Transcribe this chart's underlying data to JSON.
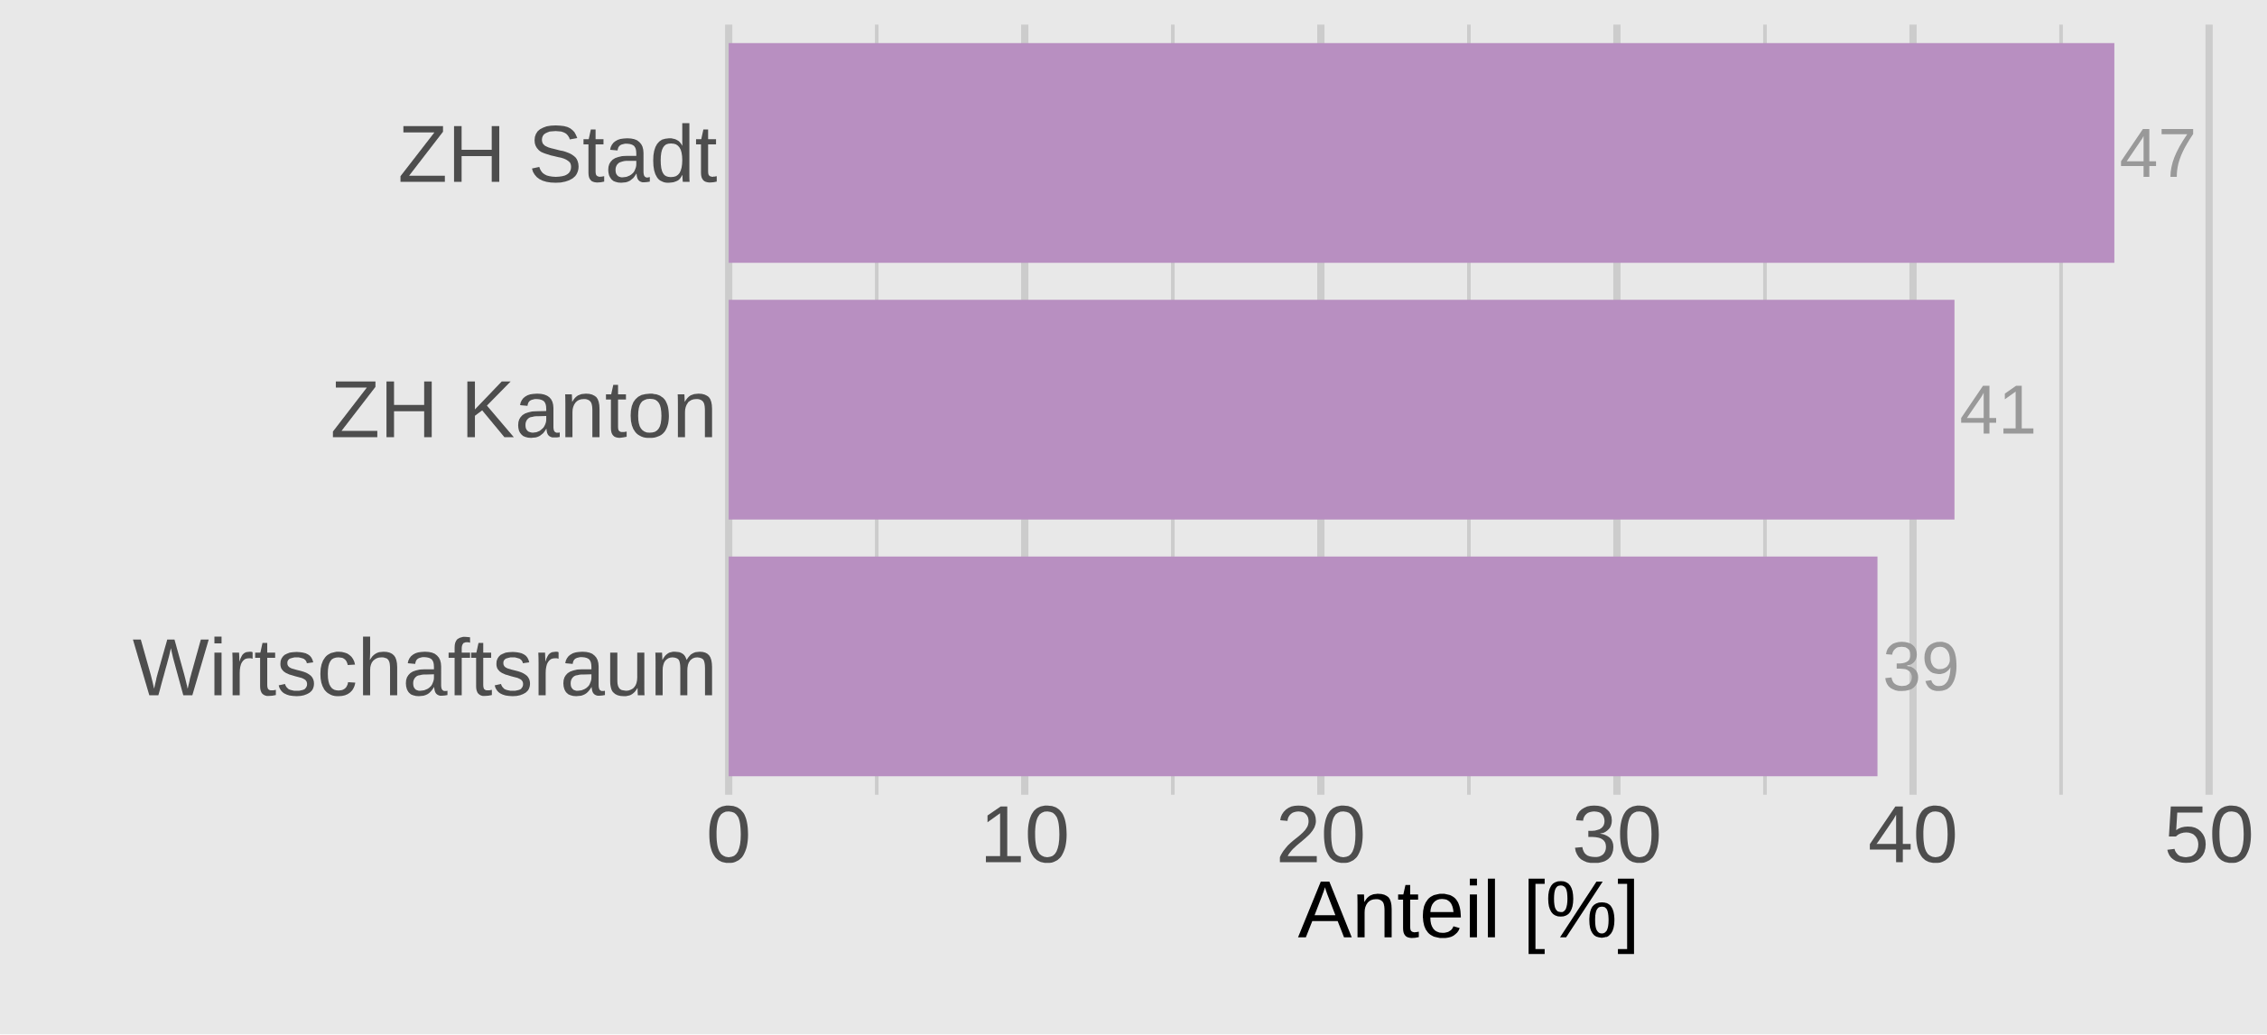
{
  "chart_data": {
    "type": "bar",
    "orientation": "horizontal",
    "xlabel": "Anteil [%]",
    "categories": [
      "ZH Stadt",
      "ZH Kanton",
      "Wirtschaftsraum"
    ],
    "values": [
      46.8,
      41.4,
      38.8
    ],
    "value_labels": [
      "47",
      "41",
      "39"
    ],
    "color": "#b88fc1",
    "xlim": [
      0,
      50
    ],
    "xticks": [
      0,
      10,
      20,
      30,
      40,
      50
    ],
    "grid": "x"
  }
}
